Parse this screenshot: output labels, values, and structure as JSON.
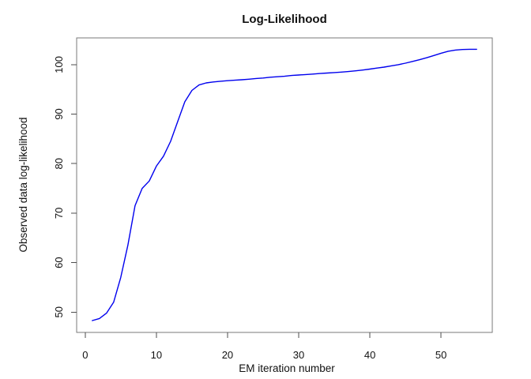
{
  "chart_data": {
    "type": "line",
    "title": "Log-Likelihood",
    "xlabel": "EM iteration number",
    "ylabel": "Observed data log-likelihood",
    "grid": false,
    "legend": null,
    "xlim": [
      -1.2,
      57.2
    ],
    "ylim": [
      45.9,
      105.4
    ],
    "xticks": [
      0,
      10,
      20,
      30,
      40,
      50
    ],
    "yticks": [
      50,
      60,
      70,
      80,
      90,
      100
    ],
    "x": [
      1,
      2,
      3,
      4,
      5,
      6,
      7,
      8,
      9,
      10,
      11,
      12,
      13,
      14,
      15,
      16,
      17,
      18,
      19,
      20,
      21,
      22,
      23,
      24,
      25,
      26,
      27,
      28,
      29,
      30,
      31,
      32,
      33,
      34,
      35,
      36,
      37,
      38,
      39,
      40,
      41,
      42,
      43,
      44,
      45,
      46,
      47,
      48,
      49,
      50,
      51,
      52,
      53,
      54,
      55
    ],
    "series": [
      {
        "name": "observed-data-log-likelihood",
        "color": "#0000EE",
        "values": [
          48.3,
          48.7,
          49.8,
          52.0,
          57.0,
          63.5,
          71.5,
          75.0,
          76.5,
          79.5,
          81.5,
          84.5,
          88.5,
          92.5,
          94.8,
          95.9,
          96.3,
          96.5,
          96.65,
          96.75,
          96.85,
          96.95,
          97.05,
          97.2,
          97.3,
          97.45,
          97.55,
          97.65,
          97.8,
          97.9,
          98.0,
          98.1,
          98.2,
          98.3,
          98.4,
          98.5,
          98.6,
          98.75,
          98.9,
          99.1,
          99.3,
          99.5,
          99.75,
          100.0,
          100.3,
          100.65,
          101.0,
          101.4,
          101.85,
          102.3,
          102.7,
          102.95,
          103.05,
          103.1,
          103.1
        ]
      }
    ],
    "colors": {
      "line": "#0000EE",
      "box": "#7a7a7a",
      "tick": "#4d4d4d",
      "text": "#111111",
      "background": "#FFFFFF"
    }
  }
}
